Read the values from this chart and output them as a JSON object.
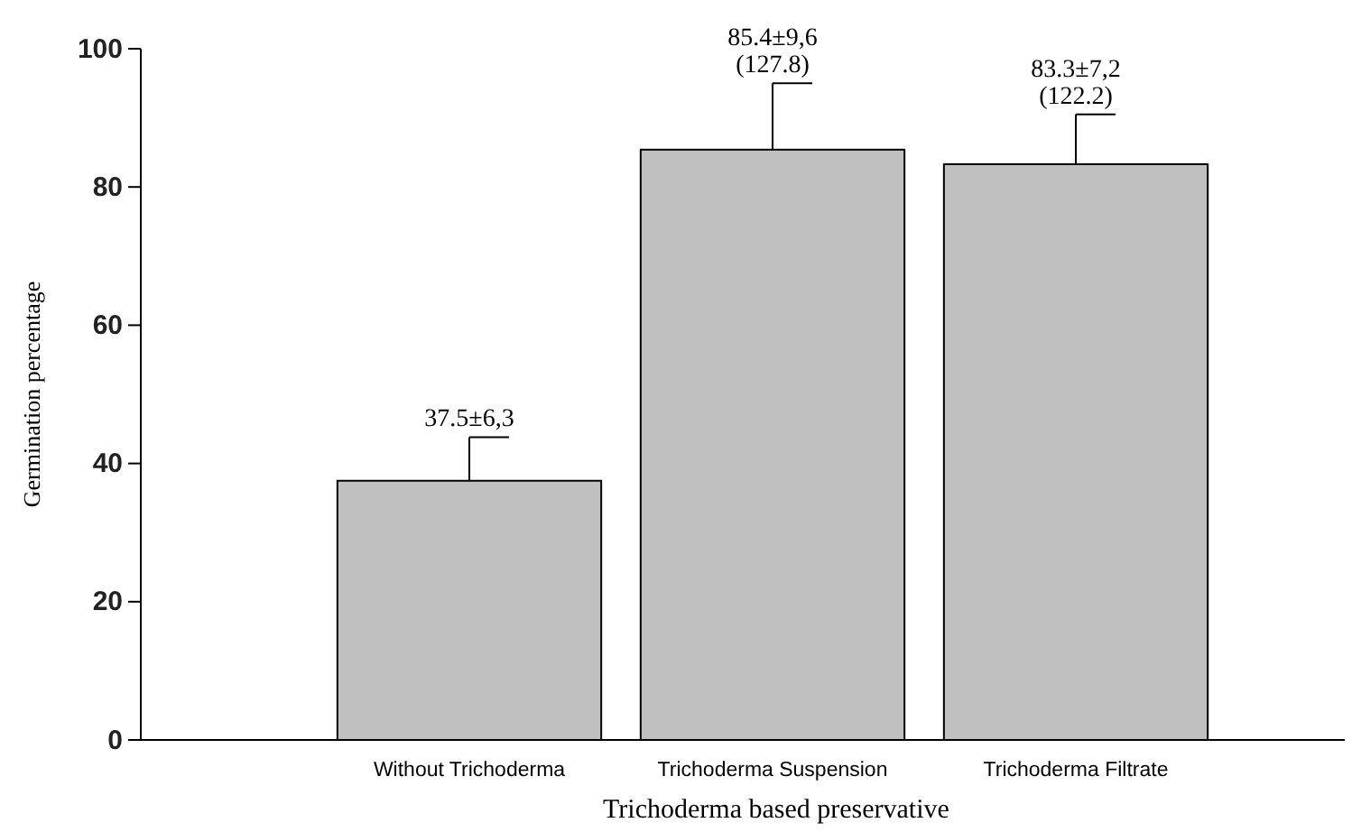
{
  "chart_data": {
    "type": "bar",
    "xlabel": "Trichoderma based preservative",
    "ylabel": "Germination percentage",
    "categories": [
      "Without Trichoderma",
      "Trichoderma Suspension",
      "Trichoderma Filtrate"
    ],
    "values": [
      37.5,
      85.4,
      83.3
    ],
    "color": "#c0c0c0",
    "errors": [
      [
        37.5,
        43.8
      ],
      [
        85.4,
        95.0
      ],
      [
        83.3,
        90.5
      ]
    ],
    "value_labels": [
      "37.5±6,3",
      "85.4±9,6\n(127.8)",
      "83.3±7,2\n(122.2)"
    ],
    "ylim": [
      0,
      100
    ],
    "yticks": [
      0,
      20,
      40,
      60,
      80,
      100
    ],
    "grid": false
  }
}
